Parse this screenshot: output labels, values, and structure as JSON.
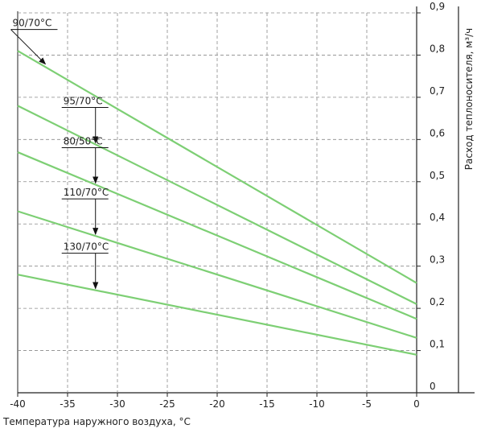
{
  "chart_data": {
    "type": "line",
    "xlabel": "Температура наружного воздуха, °С",
    "ylabel": "Расход теплоносителя, м³/ч",
    "xlim": [
      -40,
      0
    ],
    "ylim": [
      0,
      0.9
    ],
    "x_ticks": [
      -40,
      -35,
      -30,
      -25,
      -20,
      -15,
      -10,
      -5,
      0
    ],
    "x_tick_labels": [
      "-40",
      "-35",
      "-30",
      "-25",
      "-20",
      "-15",
      "-10",
      "-5",
      "0"
    ],
    "y_ticks": [
      0,
      0.1,
      0.2,
      0.3,
      0.4,
      0.5,
      0.6,
      0.7,
      0.8,
      0.9
    ],
    "y_tick_labels": [
      "0",
      "0,1",
      "0,2",
      "0,3",
      "0,4",
      "0,5",
      "0,6",
      "0,7",
      "0,8",
      "0,9"
    ],
    "y_axis_position": "right",
    "grid": true,
    "grid_style": "dashed",
    "line_color": "#7dcf74",
    "series": [
      {
        "name": "90/70°С",
        "x": [
          -40,
          0
        ],
        "y": [
          0.81,
          0.26
        ],
        "arrow_at_x": -37.3
      },
      {
        "name": "95/70°С",
        "x": [
          -40,
          0
        ],
        "y": [
          0.68,
          0.21
        ],
        "arrow_at_x": -32.2
      },
      {
        "name": "80/50°С",
        "x": [
          -40,
          0
        ],
        "y": [
          0.57,
          0.175
        ],
        "arrow_at_x": -32.2
      },
      {
        "name": "110/70°С",
        "x": [
          -40,
          0
        ],
        "y": [
          0.43,
          0.13
        ],
        "arrow_at_x": -32.2
      },
      {
        "name": "130/70°С",
        "x": [
          -40,
          0
        ],
        "y": [
          0.28,
          0.09
        ],
        "arrow_at_x": -32.2
      }
    ]
  }
}
